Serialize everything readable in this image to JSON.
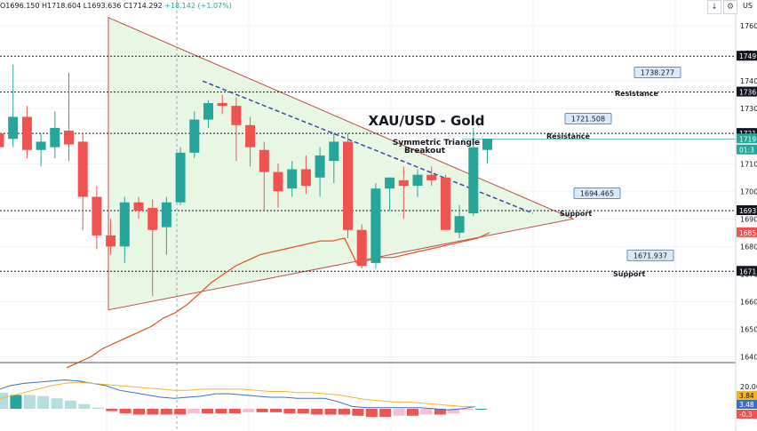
{
  "header": {
    "open": "O1696.150",
    "high": "H1718.604",
    "low": "L1693.636",
    "close": "C1714.292",
    "change": "+18.142 (+1.07%)",
    "symbol": "US"
  },
  "colors": {
    "up": "#26a69a",
    "down": "#ef5350",
    "triangle_fill": "#e8f7e4",
    "triangle_edge": "#c0504d",
    "trendline_dashed": "#3a47b0",
    "ma": "#e25b2e",
    "macd_line": "#3a6fc5",
    "signal_line": "#f4b42a",
    "hist_up": "#26a69a",
    "hist_down": "#ef5350",
    "label_bg": "#dbe8f8",
    "label_border": "#5a8fd6"
  },
  "chart_data": [
    {
      "type": "candlestick",
      "title": "XAU/USD - Gold",
      "subtitle": "Symmetric Triangle Breakout",
      "y_range": [
        1636,
        1763
      ],
      "y_ticks": [
        "1760",
        "1750",
        "1740",
        "1730",
        "1720",
        "1710",
        "1700",
        "1690",
        "1680",
        "1670",
        "1660",
        "1650",
        "1640"
      ],
      "candles": [
        {
          "o": 1721,
          "h": 1726,
          "l": 1708,
          "c": 1716
        },
        {
          "o": 1719,
          "h": 1746,
          "l": 1716,
          "c": 1727
        },
        {
          "o": 1727,
          "h": 1731,
          "l": 1712,
          "c": 1715
        },
        {
          "o": 1715,
          "h": 1721,
          "l": 1709,
          "c": 1718
        },
        {
          "o": 1716,
          "h": 1729,
          "l": 1712,
          "c": 1723
        },
        {
          "o": 1722,
          "h": 1743,
          "l": 1711,
          "c": 1717
        },
        {
          "o": 1718,
          "h": 1721,
          "l": 1686,
          "c": 1698
        },
        {
          "o": 1698,
          "h": 1702,
          "l": 1679,
          "c": 1684
        },
        {
          "o": 1684,
          "h": 1690,
          "l": 1677,
          "c": 1680
        },
        {
          "o": 1680,
          "h": 1698,
          "l": 1674,
          "c": 1696
        },
        {
          "o": 1696,
          "h": 1698,
          "l": 1690,
          "c": 1693
        },
        {
          "o": 1694,
          "h": 1697,
          "l": 1662,
          "c": 1686
        },
        {
          "o": 1687,
          "h": 1698,
          "l": 1677,
          "c": 1696
        },
        {
          "o": 1696,
          "h": 1716,
          "l": 1695,
          "c": 1714
        },
        {
          "o": 1714,
          "h": 1729,
          "l": 1712,
          "c": 1726
        },
        {
          "o": 1726,
          "h": 1733,
          "l": 1723,
          "c": 1732
        },
        {
          "o": 1732,
          "h": 1735,
          "l": 1728,
          "c": 1731
        },
        {
          "o": 1731,
          "h": 1734,
          "l": 1711,
          "c": 1724
        },
        {
          "o": 1724,
          "h": 1727,
          "l": 1709,
          "c": 1716
        },
        {
          "o": 1715,
          "h": 1718,
          "l": 1693,
          "c": 1707
        },
        {
          "o": 1707,
          "h": 1710,
          "l": 1694,
          "c": 1700
        },
        {
          "o": 1701,
          "h": 1711,
          "l": 1698,
          "c": 1708
        },
        {
          "o": 1708,
          "h": 1713,
          "l": 1699,
          "c": 1702
        },
        {
          "o": 1705,
          "h": 1716,
          "l": 1698,
          "c": 1713
        },
        {
          "o": 1711,
          "h": 1721,
          "l": 1703,
          "c": 1718
        },
        {
          "o": 1718,
          "h": 1721,
          "l": 1683,
          "c": 1686
        },
        {
          "o": 1686,
          "h": 1688,
          "l": 1672,
          "c": 1673
        },
        {
          "o": 1674,
          "h": 1703,
          "l": 1672,
          "c": 1701
        },
        {
          "o": 1701,
          "h": 1705,
          "l": 1693,
          "c": 1705
        },
        {
          "o": 1704,
          "h": 1709,
          "l": 1690,
          "c": 1702
        },
        {
          "o": 1702,
          "h": 1708,
          "l": 1698,
          "c": 1706
        },
        {
          "o": 1706,
          "h": 1709,
          "l": 1702,
          "c": 1704
        },
        {
          "o": 1705,
          "h": 1706,
          "l": 1686,
          "c": 1686
        },
        {
          "o": 1685,
          "h": 1695,
          "l": 1683,
          "c": 1691
        },
        {
          "o": 1692,
          "h": 1723,
          "l": 1691,
          "c": 1716
        },
        {
          "o": 1715,
          "h": 1719,
          "l": 1710,
          "c": 1719
        }
      ],
      "price_labels": [
        "1738.277",
        "1721.508",
        "1694.465",
        "1671.937"
      ],
      "price_label_values": [
        1738.277,
        1721.508,
        1694.465,
        1671.937
      ],
      "level_annotations": [
        "Resistance",
        "Resistance",
        "Support",
        "Support"
      ],
      "axis_labels": [
        {
          "text": "1749",
          "value": 1749,
          "style": "dark"
        },
        {
          "text": "1736",
          "value": 1736,
          "style": "dark"
        },
        {
          "text": "1721",
          "value": 1721,
          "style": "dark"
        },
        {
          "text": "1719",
          "value": 1719,
          "style": "green"
        },
        {
          "text": "01:3",
          "value": 1715,
          "style": "green"
        },
        {
          "text": "1693",
          "value": 1693,
          "style": "dark"
        },
        {
          "text": "1685",
          "value": 1685,
          "style": "red"
        },
        {
          "text": "1671",
          "value": 1671,
          "style": "dark"
        }
      ],
      "horizontal_levels": [
        1749,
        1736,
        1721,
        1693,
        1671
      ],
      "moving_average": [
        1636,
        1638,
        1640,
        1643,
        1645,
        1647,
        1649,
        1651,
        1654,
        1656,
        1659,
        1663,
        1667,
        1670,
        1673,
        1675,
        1677,
        1678,
        1679,
        1680,
        1681,
        1682,
        1682,
        1683,
        1674,
        1675,
        1676,
        1676,
        1677,
        1678,
        1679,
        1680,
        1681,
        1682,
        1683,
        1685
      ]
    },
    {
      "type": "macd",
      "y_ticks": [
        "20.00"
      ],
      "axis_labels": [
        {
          "text": "3.84",
          "style": "yellow"
        },
        {
          "text": "3.48",
          "style": "blue"
        },
        {
          "text": "-0.3",
          "style": "red"
        }
      ],
      "histogram": [
        14,
        12,
        12,
        11,
        9,
        7,
        4,
        1,
        -2,
        -4,
        -5,
        -5,
        -5,
        -5,
        -4,
        -4,
        -4,
        -4,
        -3,
        -3,
        -3,
        -4,
        -4,
        -5,
        -5,
        -5,
        -6,
        -7,
        -7,
        -6,
        -6,
        -5,
        -5,
        -4,
        -1,
        0
      ],
      "macd_line": [
        16,
        20,
        22,
        23,
        24,
        25,
        24,
        22,
        20,
        16,
        14,
        12,
        10,
        9,
        10,
        11,
        13,
        13,
        12,
        11,
        10,
        10,
        9,
        9,
        9,
        6,
        2,
        1,
        1,
        1,
        1,
        1,
        0,
        -1,
        0,
        2
      ],
      "signal_line": [
        8,
        11,
        14,
        17,
        20,
        22,
        23,
        22,
        21,
        20,
        19,
        18,
        17,
        16,
        16,
        17,
        17,
        17,
        17,
        16,
        15,
        15,
        14,
        14,
        13,
        12,
        10,
        8,
        7,
        6,
        6,
        5,
        4,
        3,
        2,
        2
      ]
    }
  ]
}
